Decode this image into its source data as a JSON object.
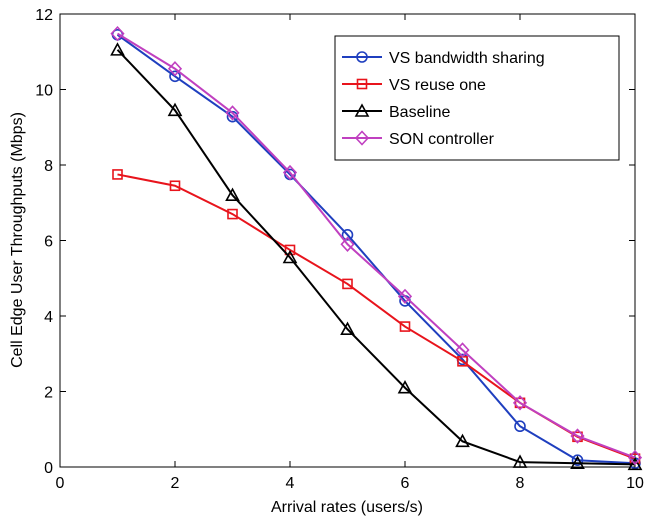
{
  "chart_data": {
    "type": "line",
    "title": "",
    "xlabel": "Arrival rates (users/s)",
    "ylabel": "Cell Edge User Throughputs (Mbps)",
    "xlim": [
      0,
      10
    ],
    "ylim": [
      0,
      12
    ],
    "xticks": [
      "0",
      "2",
      "4",
      "6",
      "8",
      "10"
    ],
    "yticks": [
      "0",
      "2",
      "4",
      "6",
      "8",
      "10",
      "12"
    ],
    "grid": false,
    "legend_position": "top-right",
    "x": [
      1,
      2,
      3,
      4,
      5,
      6,
      7,
      8,
      9,
      10
    ],
    "series": [
      {
        "name": "VS bandwidth sharing",
        "color": "#1f3fbf",
        "marker": "circle",
        "values": [
          11.45,
          10.35,
          9.28,
          7.75,
          6.15,
          4.4,
          2.85,
          1.08,
          0.18,
          0.1
        ]
      },
      {
        "name": "VS reuse one",
        "color": "#e8141c",
        "marker": "square",
        "values": [
          7.75,
          7.45,
          6.7,
          5.75,
          4.85,
          3.72,
          2.8,
          1.7,
          0.8,
          0.22
        ]
      },
      {
        "name": "Baseline",
        "color": "#000000",
        "marker": "triangle",
        "values": [
          11.05,
          9.45,
          7.2,
          5.55,
          3.65,
          2.1,
          0.68,
          0.13,
          0.1,
          0.07
        ]
      },
      {
        "name": "SON controller",
        "color": "#c040c0",
        "marker": "diamond",
        "values": [
          11.48,
          10.55,
          9.38,
          7.8,
          5.9,
          4.52,
          3.1,
          1.7,
          0.82,
          0.25
        ]
      }
    ]
  }
}
